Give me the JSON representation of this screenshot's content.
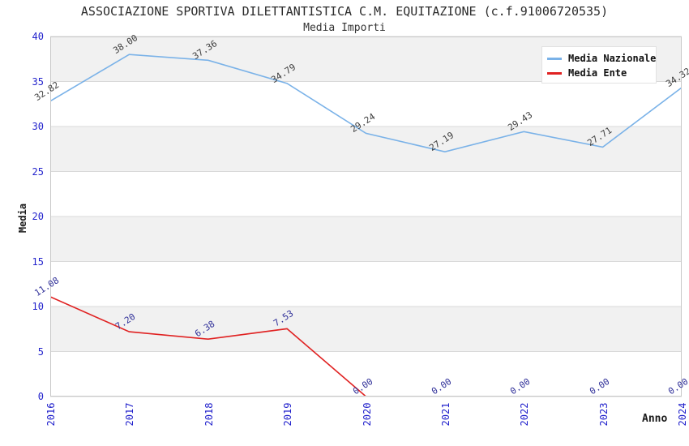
{
  "header": {
    "title": "ASSOCIAZIONE SPORTIVA DILETTANTISTICA C.M. EQUITAZIONE (c.f.91006720535)",
    "subtitle": "Media Importi"
  },
  "chart_data": {
    "type": "line",
    "categories": [
      "2016",
      "2017",
      "2018",
      "2019",
      "2020",
      "2021",
      "2022",
      "2023",
      "2024"
    ],
    "series": [
      {
        "name": "Media Nazionale",
        "color": "#7ab2e8",
        "label_color": "#3c3c3c",
        "values": [
          32.82,
          38.0,
          37.36,
          34.79,
          29.24,
          27.19,
          29.43,
          27.71,
          34.32
        ]
      },
      {
        "name": "Media Ente",
        "color": "#e02222",
        "label_color": "#303099",
        "values": [
          11.08,
          7.2,
          6.38,
          7.53,
          0.0,
          0.0,
          0.0,
          0.0,
          0.0
        ]
      }
    ],
    "title": "ASSOCIAZIONE SPORTIVA DILETTANTISTICA C.M. EQUITAZIONE (c.f.91006720535)",
    "subtitle": "Media Importi",
    "xlabel": "Anno",
    "ylabel": "Media",
    "ylim": [
      0,
      40
    ],
    "y_ticks": [
      0,
      5,
      10,
      15,
      20,
      25,
      30,
      35,
      40
    ],
    "data_label_decimals": 2,
    "grid": "horizontal-bands",
    "band_color": "#f1f1f1",
    "gridline_color": "#d9d9d9",
    "plot_border_color": "#c8c8c8",
    "tick_label_color": "#2222cc",
    "legend_position": "top-right"
  }
}
